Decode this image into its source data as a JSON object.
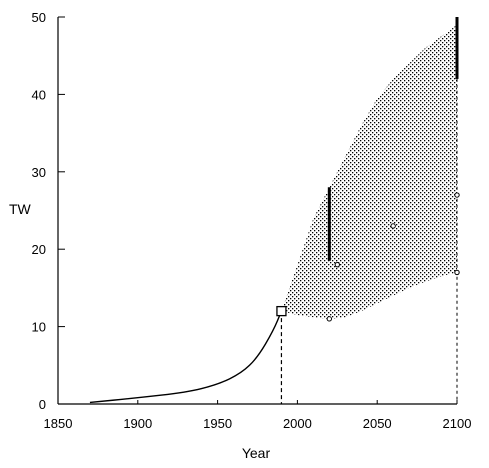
{
  "chart_data": {
    "type": "area",
    "xlabel": "Year",
    "ylabel": "TW",
    "xlim": [
      1850,
      2100
    ],
    "ylim": [
      0,
      50
    ],
    "xticks": [
      1850,
      1900,
      1950,
      2000,
      2050,
      2100
    ],
    "yticks": [
      0,
      10,
      20,
      30,
      40,
      50
    ],
    "grid": false,
    "series": [
      {
        "kind": "line",
        "x": [
          1870,
          1900,
          1930,
          1950,
          1965,
          1975,
          1985,
          1990
        ],
        "y": [
          0.2,
          0.8,
          1.5,
          2.5,
          4,
          6,
          9.5,
          12
        ]
      }
    ],
    "projection_band": {
      "x": [
        1990,
        2000,
        2010,
        2020,
        2030,
        2040,
        2050,
        2060,
        2070,
        2080,
        2090,
        2100
      ],
      "upper": [
        12,
        18,
        24,
        28,
        32,
        36,
        39.5,
        42,
        44,
        46,
        47.5,
        49
      ],
      "lower": [
        12,
        11.5,
        11.2,
        11,
        11.2,
        12,
        13,
        14,
        15,
        15.8,
        16.5,
        17
      ]
    },
    "marker": {
      "x": 1990,
      "y": 12
    },
    "dropline_x": 1990,
    "dropline_2100": {
      "x": 2100,
      "y": 49
    },
    "range_bars": [
      {
        "x": 2020,
        "low": 18.5,
        "high": 28
      },
      {
        "x": 2100,
        "low": 42,
        "high": 50
      }
    ],
    "points": [
      {
        "x": 2020,
        "y": 11
      },
      {
        "x": 2025,
        "y": 18
      },
      {
        "x": 2060,
        "y": 23
      },
      {
        "x": 2100,
        "y": 27
      },
      {
        "x": 2100,
        "y": 17
      }
    ]
  }
}
